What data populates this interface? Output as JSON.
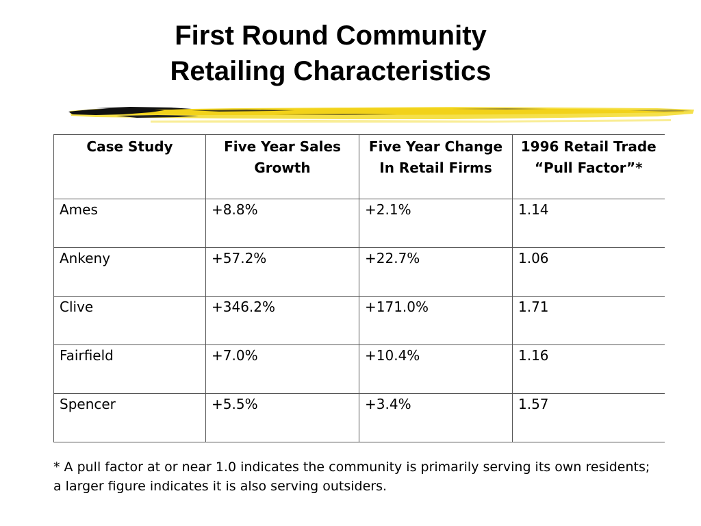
{
  "title": {
    "line1": "First Round Community",
    "line2": "Retailing Characteristics"
  },
  "decoration": {
    "brush_colors": [
      "#111111",
      "#f2d21a",
      "#f5e04a"
    ]
  },
  "table": {
    "headers": [
      "Case Study",
      "Five Year Sales Growth",
      "Five Year Change In Retail Firms",
      "1996 Retail Trade “Pull Factor”*"
    ],
    "rows": [
      [
        "Ames",
        "+8.8%",
        "+2.1%",
        "1.14"
      ],
      [
        "Ankeny",
        "+57.2%",
        "+22.7%",
        "1.06"
      ],
      [
        "Clive",
        "+346.2%",
        "+171.0%",
        "1.71"
      ],
      [
        "Fairfield",
        "+7.0%",
        "+10.4%",
        "1.16"
      ],
      [
        "Spencer",
        "+5.5%",
        "+3.4%",
        "1.57"
      ]
    ]
  },
  "footnote": "* A pull factor at or near 1.0 indicates the community is primarily serving its own residents; a larger figure indicates it is also serving outsiders."
}
